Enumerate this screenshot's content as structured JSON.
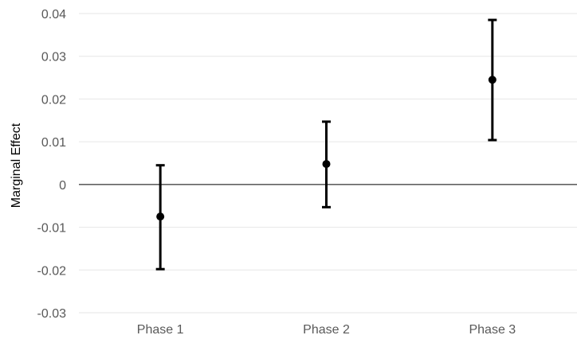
{
  "chart_data": {
    "type": "scatter",
    "title": "",
    "xlabel": "",
    "ylabel": "Marginal Effect",
    "ylim": [
      -0.03,
      0.04
    ],
    "yticks": [
      0.04,
      0.03,
      0.02,
      0.01,
      0,
      -0.01,
      -0.02,
      -0.03
    ],
    "ytick_labels": [
      "0.04",
      "0.03",
      "0.02",
      "0.01",
      "0",
      "-0.01",
      "-0.02",
      "-0.03"
    ],
    "categories": [
      "Phase 1",
      "Phase 2",
      "Phase 3"
    ],
    "series": [
      {
        "values": [
          -0.0075,
          0.0048,
          0.0245
        ],
        "lower": [
          -0.0198,
          -0.0053,
          0.0104
        ],
        "upper": [
          0.0045,
          0.0147,
          0.0385
        ]
      }
    ],
    "grid": true,
    "zero_line": true,
    "legend": "none",
    "colors": {
      "marker": "#000000",
      "grid": "#e6e6e6",
      "zero_line": "#000000",
      "tick_text": "#595959"
    }
  }
}
